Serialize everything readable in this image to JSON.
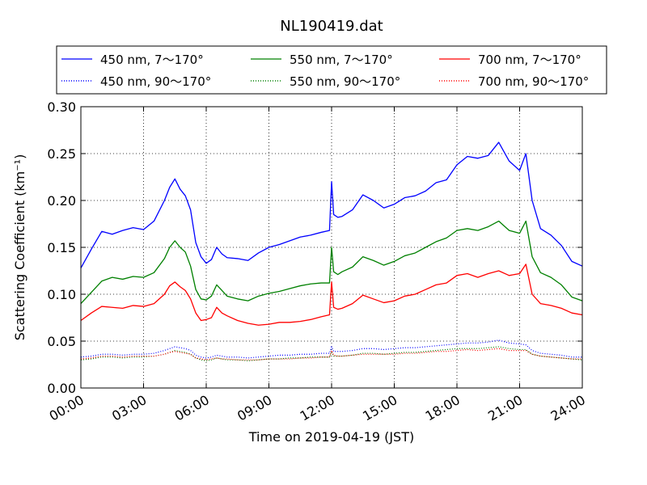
{
  "chart_data": {
    "type": "line",
    "title": "NL190419.dat",
    "xlabel": "Time on 2019-04-19 (JST)",
    "ylabel": "Scattering Coefficient (km⁻¹)",
    "xlim": [
      0,
      24
    ],
    "ylim": [
      0.0,
      0.3
    ],
    "xticks": [
      0,
      3,
      6,
      9,
      12,
      15,
      18,
      21,
      24
    ],
    "xtick_labels": [
      "00:00",
      "03:00",
      "06:00",
      "09:00",
      "12:00",
      "15:00",
      "18:00",
      "21:00",
      "24:00"
    ],
    "yticks": [
      0.0,
      0.05,
      0.1,
      0.15,
      0.2,
      0.25,
      0.3
    ],
    "ytick_labels": [
      "0.00",
      "0.05",
      "0.10",
      "0.15",
      "0.20",
      "0.25",
      "0.30"
    ],
    "grid": true,
    "legend_position": "top",
    "x": [
      0.0,
      0.5,
      1.0,
      1.5,
      2.0,
      2.5,
      3.0,
      3.5,
      4.0,
      4.25,
      4.5,
      4.75,
      5.0,
      5.25,
      5.5,
      5.75,
      6.0,
      6.25,
      6.5,
      6.75,
      7.0,
      7.5,
      8.0,
      8.5,
      9.0,
      9.5,
      10.0,
      10.5,
      11.0,
      11.5,
      11.9,
      12.0,
      12.1,
      12.3,
      12.5,
      13.0,
      13.5,
      14.0,
      14.5,
      15.0,
      15.5,
      16.0,
      16.5,
      17.0,
      17.5,
      18.0,
      18.5,
      19.0,
      19.5,
      20.0,
      20.5,
      21.0,
      21.3,
      21.6,
      22.0,
      22.5,
      23.0,
      23.5,
      24.0
    ],
    "series": [
      {
        "name": "450 nm, 7～170°",
        "color": "#0000ff",
        "style": "solid",
        "values": [
          0.128,
          0.148,
          0.167,
          0.164,
          0.168,
          0.171,
          0.169,
          0.178,
          0.2,
          0.214,
          0.223,
          0.212,
          0.205,
          0.19,
          0.155,
          0.14,
          0.133,
          0.137,
          0.15,
          0.143,
          0.139,
          0.138,
          0.136,
          0.144,
          0.15,
          0.153,
          0.157,
          0.161,
          0.163,
          0.166,
          0.168,
          0.22,
          0.185,
          0.182,
          0.183,
          0.19,
          0.206,
          0.2,
          0.192,
          0.196,
          0.203,
          0.205,
          0.21,
          0.219,
          0.222,
          0.238,
          0.247,
          0.245,
          0.248,
          0.262,
          0.242,
          0.232,
          0.25,
          0.2,
          0.17,
          0.163,
          0.152,
          0.135,
          0.13
        ]
      },
      {
        "name": "550 nm, 7～170°",
        "color": "#008000",
        "style": "solid",
        "values": [
          0.09,
          0.102,
          0.114,
          0.118,
          0.116,
          0.119,
          0.118,
          0.123,
          0.138,
          0.15,
          0.157,
          0.15,
          0.145,
          0.13,
          0.105,
          0.095,
          0.094,
          0.098,
          0.11,
          0.104,
          0.098,
          0.095,
          0.093,
          0.098,
          0.101,
          0.103,
          0.106,
          0.109,
          0.111,
          0.112,
          0.112,
          0.15,
          0.124,
          0.121,
          0.124,
          0.129,
          0.14,
          0.136,
          0.131,
          0.135,
          0.141,
          0.144,
          0.15,
          0.156,
          0.16,
          0.168,
          0.17,
          0.168,
          0.172,
          0.178,
          0.168,
          0.165,
          0.178,
          0.14,
          0.123,
          0.118,
          0.11,
          0.097,
          0.093
        ]
      },
      {
        "name": "700 nm, 7～170°",
        "color": "#ff0000",
        "style": "solid",
        "values": [
          0.072,
          0.08,
          0.087,
          0.086,
          0.085,
          0.088,
          0.087,
          0.09,
          0.1,
          0.109,
          0.113,
          0.108,
          0.104,
          0.095,
          0.08,
          0.072,
          0.073,
          0.075,
          0.086,
          0.08,
          0.077,
          0.072,
          0.069,
          0.067,
          0.068,
          0.07,
          0.07,
          0.071,
          0.073,
          0.076,
          0.078,
          0.113,
          0.086,
          0.084,
          0.085,
          0.09,
          0.099,
          0.095,
          0.091,
          0.093,
          0.098,
          0.1,
          0.105,
          0.11,
          0.112,
          0.12,
          0.122,
          0.118,
          0.122,
          0.125,
          0.12,
          0.122,
          0.132,
          0.1,
          0.09,
          0.088,
          0.085,
          0.08,
          0.078
        ]
      },
      {
        "name": "450 nm, 90～170°",
        "color": "#0000ff",
        "style": "dotted",
        "values": [
          0.033,
          0.034,
          0.036,
          0.036,
          0.035,
          0.036,
          0.036,
          0.037,
          0.04,
          0.042,
          0.044,
          0.043,
          0.042,
          0.04,
          0.035,
          0.033,
          0.032,
          0.033,
          0.035,
          0.034,
          0.033,
          0.033,
          0.032,
          0.033,
          0.034,
          0.035,
          0.035,
          0.036,
          0.036,
          0.037,
          0.037,
          0.044,
          0.039,
          0.039,
          0.039,
          0.04,
          0.042,
          0.042,
          0.041,
          0.042,
          0.043,
          0.043,
          0.044,
          0.045,
          0.046,
          0.047,
          0.048,
          0.048,
          0.049,
          0.051,
          0.048,
          0.047,
          0.046,
          0.04,
          0.037,
          0.036,
          0.035,
          0.033,
          0.033
        ]
      },
      {
        "name": "550 nm, 90～170°",
        "color": "#008000",
        "style": "dotted",
        "values": [
          0.03,
          0.031,
          0.033,
          0.033,
          0.032,
          0.033,
          0.033,
          0.034,
          0.036,
          0.038,
          0.04,
          0.039,
          0.038,
          0.036,
          0.032,
          0.03,
          0.029,
          0.03,
          0.032,
          0.031,
          0.03,
          0.03,
          0.029,
          0.03,
          0.031,
          0.031,
          0.032,
          0.032,
          0.033,
          0.033,
          0.033,
          0.038,
          0.034,
          0.034,
          0.034,
          0.035,
          0.037,
          0.037,
          0.036,
          0.037,
          0.038,
          0.038,
          0.039,
          0.04,
          0.041,
          0.042,
          0.042,
          0.042,
          0.043,
          0.044,
          0.042,
          0.041,
          0.041,
          0.036,
          0.034,
          0.033,
          0.032,
          0.031,
          0.03
        ]
      },
      {
        "name": "700 nm, 90～170°",
        "color": "#ff0000",
        "style": "dotted",
        "values": [
          0.031,
          0.032,
          0.034,
          0.034,
          0.033,
          0.034,
          0.034,
          0.034,
          0.036,
          0.038,
          0.039,
          0.038,
          0.037,
          0.036,
          0.032,
          0.031,
          0.03,
          0.031,
          0.032,
          0.031,
          0.031,
          0.03,
          0.03,
          0.03,
          0.031,
          0.031,
          0.031,
          0.032,
          0.032,
          0.033,
          0.033,
          0.04,
          0.035,
          0.034,
          0.034,
          0.035,
          0.036,
          0.036,
          0.036,
          0.036,
          0.037,
          0.037,
          0.038,
          0.039,
          0.039,
          0.04,
          0.041,
          0.04,
          0.041,
          0.042,
          0.04,
          0.04,
          0.04,
          0.036,
          0.034,
          0.033,
          0.032,
          0.031,
          0.031
        ]
      }
    ]
  },
  "legend": {
    "items": [
      {
        "label": "450 nm, 7～170°",
        "color": "#0000ff",
        "style": "solid"
      },
      {
        "label": "550 nm, 7～170°",
        "color": "#008000",
        "style": "solid"
      },
      {
        "label": "700 nm, 7～170°",
        "color": "#ff0000",
        "style": "solid"
      },
      {
        "label": "450 nm, 90～170°",
        "color": "#0000ff",
        "style": "dotted"
      },
      {
        "label": "550 nm, 90～170°",
        "color": "#008000",
        "style": "dotted"
      },
      {
        "label": "700 nm, 90～170°",
        "color": "#ff0000",
        "style": "dotted"
      }
    ]
  }
}
